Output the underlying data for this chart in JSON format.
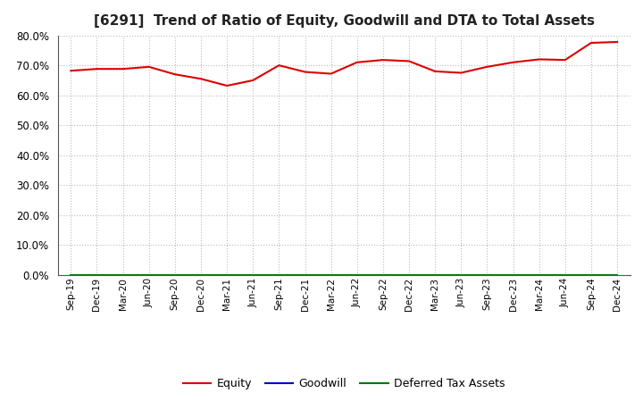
{
  "title": "[6291]  Trend of Ratio of Equity, Goodwill and DTA to Total Assets",
  "x_labels": [
    "Sep-19",
    "Dec-19",
    "Mar-20",
    "Jun-20",
    "Sep-20",
    "Dec-20",
    "Mar-21",
    "Jun-21",
    "Sep-21",
    "Dec-21",
    "Mar-22",
    "Jun-22",
    "Sep-22",
    "Dec-22",
    "Mar-23",
    "Jun-23",
    "Sep-23",
    "Dec-23",
    "Mar-24",
    "Jun-24",
    "Sep-24",
    "Dec-24"
  ],
  "equity": [
    0.682,
    0.688,
    0.688,
    0.695,
    0.67,
    0.655,
    0.632,
    0.65,
    0.7,
    0.678,
    0.672,
    0.71,
    0.718,
    0.714,
    0.68,
    0.675,
    0.695,
    0.71,
    0.72,
    0.718,
    0.775,
    0.778
  ],
  "goodwill": [
    0.0,
    0.0,
    0.0,
    0.0,
    0.0,
    0.0,
    0.0,
    0.0,
    0.0,
    0.0,
    0.0,
    0.0,
    0.0,
    0.0,
    0.0,
    0.0,
    0.0,
    0.0,
    0.0,
    0.0,
    0.0,
    0.0
  ],
  "dta": [
    0.0,
    0.0,
    0.0,
    0.0,
    0.0,
    0.0,
    0.0,
    0.0,
    0.0,
    0.0,
    0.0,
    0.0,
    0.0,
    0.0,
    0.0,
    0.0,
    0.0,
    0.0,
    0.0,
    0.0,
    0.0,
    0.0
  ],
  "equity_color": "#dd0000",
  "goodwill_color": "#0000cc",
  "dta_color": "#007700",
  "ylim": [
    0.0,
    0.8
  ],
  "yticks": [
    0.0,
    0.1,
    0.2,
    0.3,
    0.4,
    0.5,
    0.6,
    0.7,
    0.8
  ],
  "bg_color": "#ffffff",
  "grid_color": "#bbbbbb",
  "title_fontsize": 11,
  "legend_labels": [
    "Equity",
    "Goodwill",
    "Deferred Tax Assets"
  ]
}
